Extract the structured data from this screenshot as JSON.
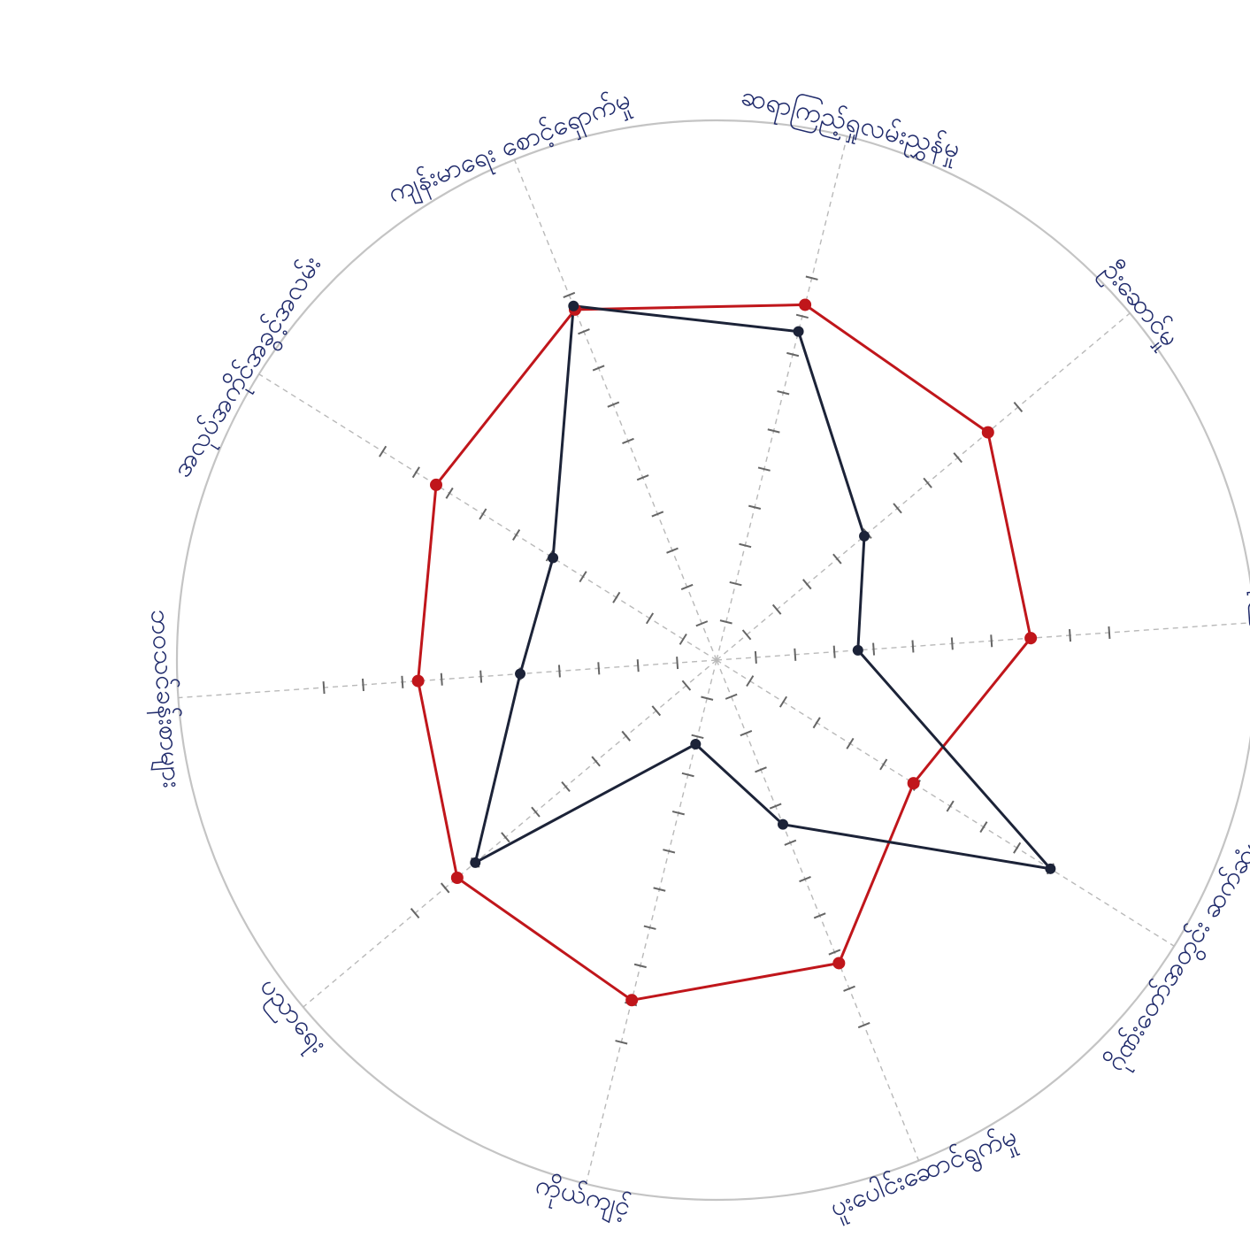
{
  "chart_data": {
    "type": "radar",
    "title": "",
    "axes": [
      "ဆရာကြည့်ရှုလမ်းညွှန်မှု",
      "ဦးဆောင်မှု",
      "ယုံကြည်မှု",
      "ဂိုဏ်းတော်အတွင်း ဆက်ဆံမှု",
      "ပူးပေါင်းဆောင်ရွက်မှု",
      "ကိုယ်ကျင့်",
      "ပညာရေး",
      "ဘဝသင်ခန်းစာများ",
      "အလုပ်အကိုင်အခွင့်အလမ်း",
      "ကျန်းမာရေး စောင့်ရှောက်မှု"
    ],
    "rlim": [
      0,
      10
    ],
    "grid": false,
    "legend": "none",
    "series": [
      {
        "values": [
          9.3,
          9.0,
          8.0,
          5.9,
          8.3,
          8.9,
          8.6,
          7.6,
          8.4,
          9.6
        ],
        "color": "#c0161b"
      },
      {
        "values": [
          8.6,
          4.9,
          3.6,
          10.0,
          4.5,
          2.2,
          8.0,
          5.0,
          4.9,
          9.7
        ],
        "color": "#1c2338"
      }
    ]
  }
}
